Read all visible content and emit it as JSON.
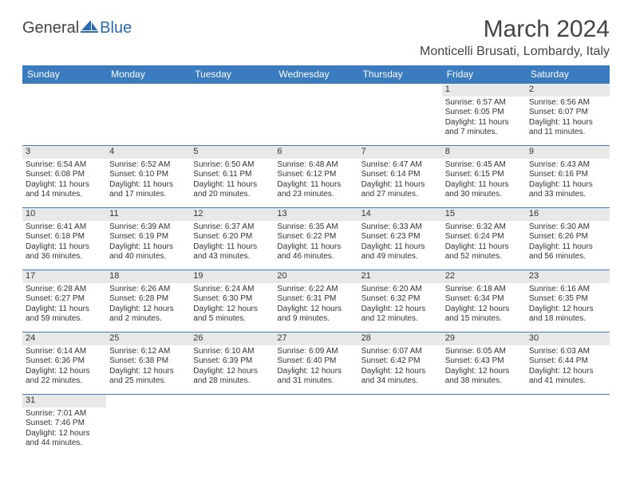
{
  "logo": {
    "text1": "General",
    "text2": "Blue",
    "shape_color": "#2a6ab0"
  },
  "title": "March 2024",
  "location": "Monticelli Brusati, Lombardy, Italy",
  "colors": {
    "header_bg": "#3b7bbf",
    "header_fg": "#ffffff",
    "daynum_bg": "#e8e8e8",
    "row_border": "#3b7bbf",
    "text": "#333333"
  },
  "day_headers": [
    "Sunday",
    "Monday",
    "Tuesday",
    "Wednesday",
    "Thursday",
    "Friday",
    "Saturday"
  ],
  "weeks": [
    [
      null,
      null,
      null,
      null,
      null,
      {
        "n": "1",
        "sr": "Sunrise: 6:57 AM",
        "ss": "Sunset: 6:05 PM",
        "d1": "Daylight: 11 hours",
        "d2": "and 7 minutes."
      },
      {
        "n": "2",
        "sr": "Sunrise: 6:56 AM",
        "ss": "Sunset: 6:07 PM",
        "d1": "Daylight: 11 hours",
        "d2": "and 11 minutes."
      }
    ],
    [
      {
        "n": "3",
        "sr": "Sunrise: 6:54 AM",
        "ss": "Sunset: 6:08 PM",
        "d1": "Daylight: 11 hours",
        "d2": "and 14 minutes."
      },
      {
        "n": "4",
        "sr": "Sunrise: 6:52 AM",
        "ss": "Sunset: 6:10 PM",
        "d1": "Daylight: 11 hours",
        "d2": "and 17 minutes."
      },
      {
        "n": "5",
        "sr": "Sunrise: 6:50 AM",
        "ss": "Sunset: 6:11 PM",
        "d1": "Daylight: 11 hours",
        "d2": "and 20 minutes."
      },
      {
        "n": "6",
        "sr": "Sunrise: 6:48 AM",
        "ss": "Sunset: 6:12 PM",
        "d1": "Daylight: 11 hours",
        "d2": "and 23 minutes."
      },
      {
        "n": "7",
        "sr": "Sunrise: 6:47 AM",
        "ss": "Sunset: 6:14 PM",
        "d1": "Daylight: 11 hours",
        "d2": "and 27 minutes."
      },
      {
        "n": "8",
        "sr": "Sunrise: 6:45 AM",
        "ss": "Sunset: 6:15 PM",
        "d1": "Daylight: 11 hours",
        "d2": "and 30 minutes."
      },
      {
        "n": "9",
        "sr": "Sunrise: 6:43 AM",
        "ss": "Sunset: 6:16 PM",
        "d1": "Daylight: 11 hours",
        "d2": "and 33 minutes."
      }
    ],
    [
      {
        "n": "10",
        "sr": "Sunrise: 6:41 AM",
        "ss": "Sunset: 6:18 PM",
        "d1": "Daylight: 11 hours",
        "d2": "and 36 minutes."
      },
      {
        "n": "11",
        "sr": "Sunrise: 6:39 AM",
        "ss": "Sunset: 6:19 PM",
        "d1": "Daylight: 11 hours",
        "d2": "and 40 minutes."
      },
      {
        "n": "12",
        "sr": "Sunrise: 6:37 AM",
        "ss": "Sunset: 6:20 PM",
        "d1": "Daylight: 11 hours",
        "d2": "and 43 minutes."
      },
      {
        "n": "13",
        "sr": "Sunrise: 6:35 AM",
        "ss": "Sunset: 6:22 PM",
        "d1": "Daylight: 11 hours",
        "d2": "and 46 minutes."
      },
      {
        "n": "14",
        "sr": "Sunrise: 6:33 AM",
        "ss": "Sunset: 6:23 PM",
        "d1": "Daylight: 11 hours",
        "d2": "and 49 minutes."
      },
      {
        "n": "15",
        "sr": "Sunrise: 6:32 AM",
        "ss": "Sunset: 6:24 PM",
        "d1": "Daylight: 11 hours",
        "d2": "and 52 minutes."
      },
      {
        "n": "16",
        "sr": "Sunrise: 6:30 AM",
        "ss": "Sunset: 6:26 PM",
        "d1": "Daylight: 11 hours",
        "d2": "and 56 minutes."
      }
    ],
    [
      {
        "n": "17",
        "sr": "Sunrise: 6:28 AM",
        "ss": "Sunset: 6:27 PM",
        "d1": "Daylight: 11 hours",
        "d2": "and 59 minutes."
      },
      {
        "n": "18",
        "sr": "Sunrise: 6:26 AM",
        "ss": "Sunset: 6:28 PM",
        "d1": "Daylight: 12 hours",
        "d2": "and 2 minutes."
      },
      {
        "n": "19",
        "sr": "Sunrise: 6:24 AM",
        "ss": "Sunset: 6:30 PM",
        "d1": "Daylight: 12 hours",
        "d2": "and 5 minutes."
      },
      {
        "n": "20",
        "sr": "Sunrise: 6:22 AM",
        "ss": "Sunset: 6:31 PM",
        "d1": "Daylight: 12 hours",
        "d2": "and 9 minutes."
      },
      {
        "n": "21",
        "sr": "Sunrise: 6:20 AM",
        "ss": "Sunset: 6:32 PM",
        "d1": "Daylight: 12 hours",
        "d2": "and 12 minutes."
      },
      {
        "n": "22",
        "sr": "Sunrise: 6:18 AM",
        "ss": "Sunset: 6:34 PM",
        "d1": "Daylight: 12 hours",
        "d2": "and 15 minutes."
      },
      {
        "n": "23",
        "sr": "Sunrise: 6:16 AM",
        "ss": "Sunset: 6:35 PM",
        "d1": "Daylight: 12 hours",
        "d2": "and 18 minutes."
      }
    ],
    [
      {
        "n": "24",
        "sr": "Sunrise: 6:14 AM",
        "ss": "Sunset: 6:36 PM",
        "d1": "Daylight: 12 hours",
        "d2": "and 22 minutes."
      },
      {
        "n": "25",
        "sr": "Sunrise: 6:12 AM",
        "ss": "Sunset: 6:38 PM",
        "d1": "Daylight: 12 hours",
        "d2": "and 25 minutes."
      },
      {
        "n": "26",
        "sr": "Sunrise: 6:10 AM",
        "ss": "Sunset: 6:39 PM",
        "d1": "Daylight: 12 hours",
        "d2": "and 28 minutes."
      },
      {
        "n": "27",
        "sr": "Sunrise: 6:09 AM",
        "ss": "Sunset: 6:40 PM",
        "d1": "Daylight: 12 hours",
        "d2": "and 31 minutes."
      },
      {
        "n": "28",
        "sr": "Sunrise: 6:07 AM",
        "ss": "Sunset: 6:42 PM",
        "d1": "Daylight: 12 hours",
        "d2": "and 34 minutes."
      },
      {
        "n": "29",
        "sr": "Sunrise: 6:05 AM",
        "ss": "Sunset: 6:43 PM",
        "d1": "Daylight: 12 hours",
        "d2": "and 38 minutes."
      },
      {
        "n": "30",
        "sr": "Sunrise: 6:03 AM",
        "ss": "Sunset: 6:44 PM",
        "d1": "Daylight: 12 hours",
        "d2": "and 41 minutes."
      }
    ],
    [
      {
        "n": "31",
        "sr": "Sunrise: 7:01 AM",
        "ss": "Sunset: 7:46 PM",
        "d1": "Daylight: 12 hours",
        "d2": "and 44 minutes."
      },
      null,
      null,
      null,
      null,
      null,
      null
    ]
  ]
}
